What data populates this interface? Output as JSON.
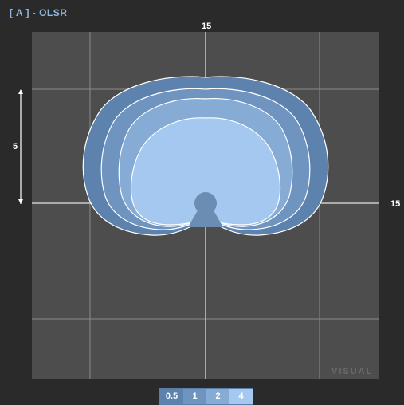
{
  "header": {
    "title": "[ A ] - OLSR"
  },
  "axis_labels": {
    "top": "15",
    "right": "15",
    "scale": "5"
  },
  "watermark": "VISUAL",
  "legend": {
    "items": [
      {
        "label": "0.5",
        "color": "#5c82ad"
      },
      {
        "label": "1",
        "color": "#6f94bf"
      },
      {
        "label": "2",
        "color": "#86acd5"
      },
      {
        "label": "4",
        "color": "#a4c8ef"
      }
    ]
  },
  "colors": {
    "background": "#2a2a2a",
    "plot_background": "#4d4d4d",
    "grid": "#bdbdbd",
    "contour_outline": "#ffffff",
    "title": "#8fb6e0"
  }
}
